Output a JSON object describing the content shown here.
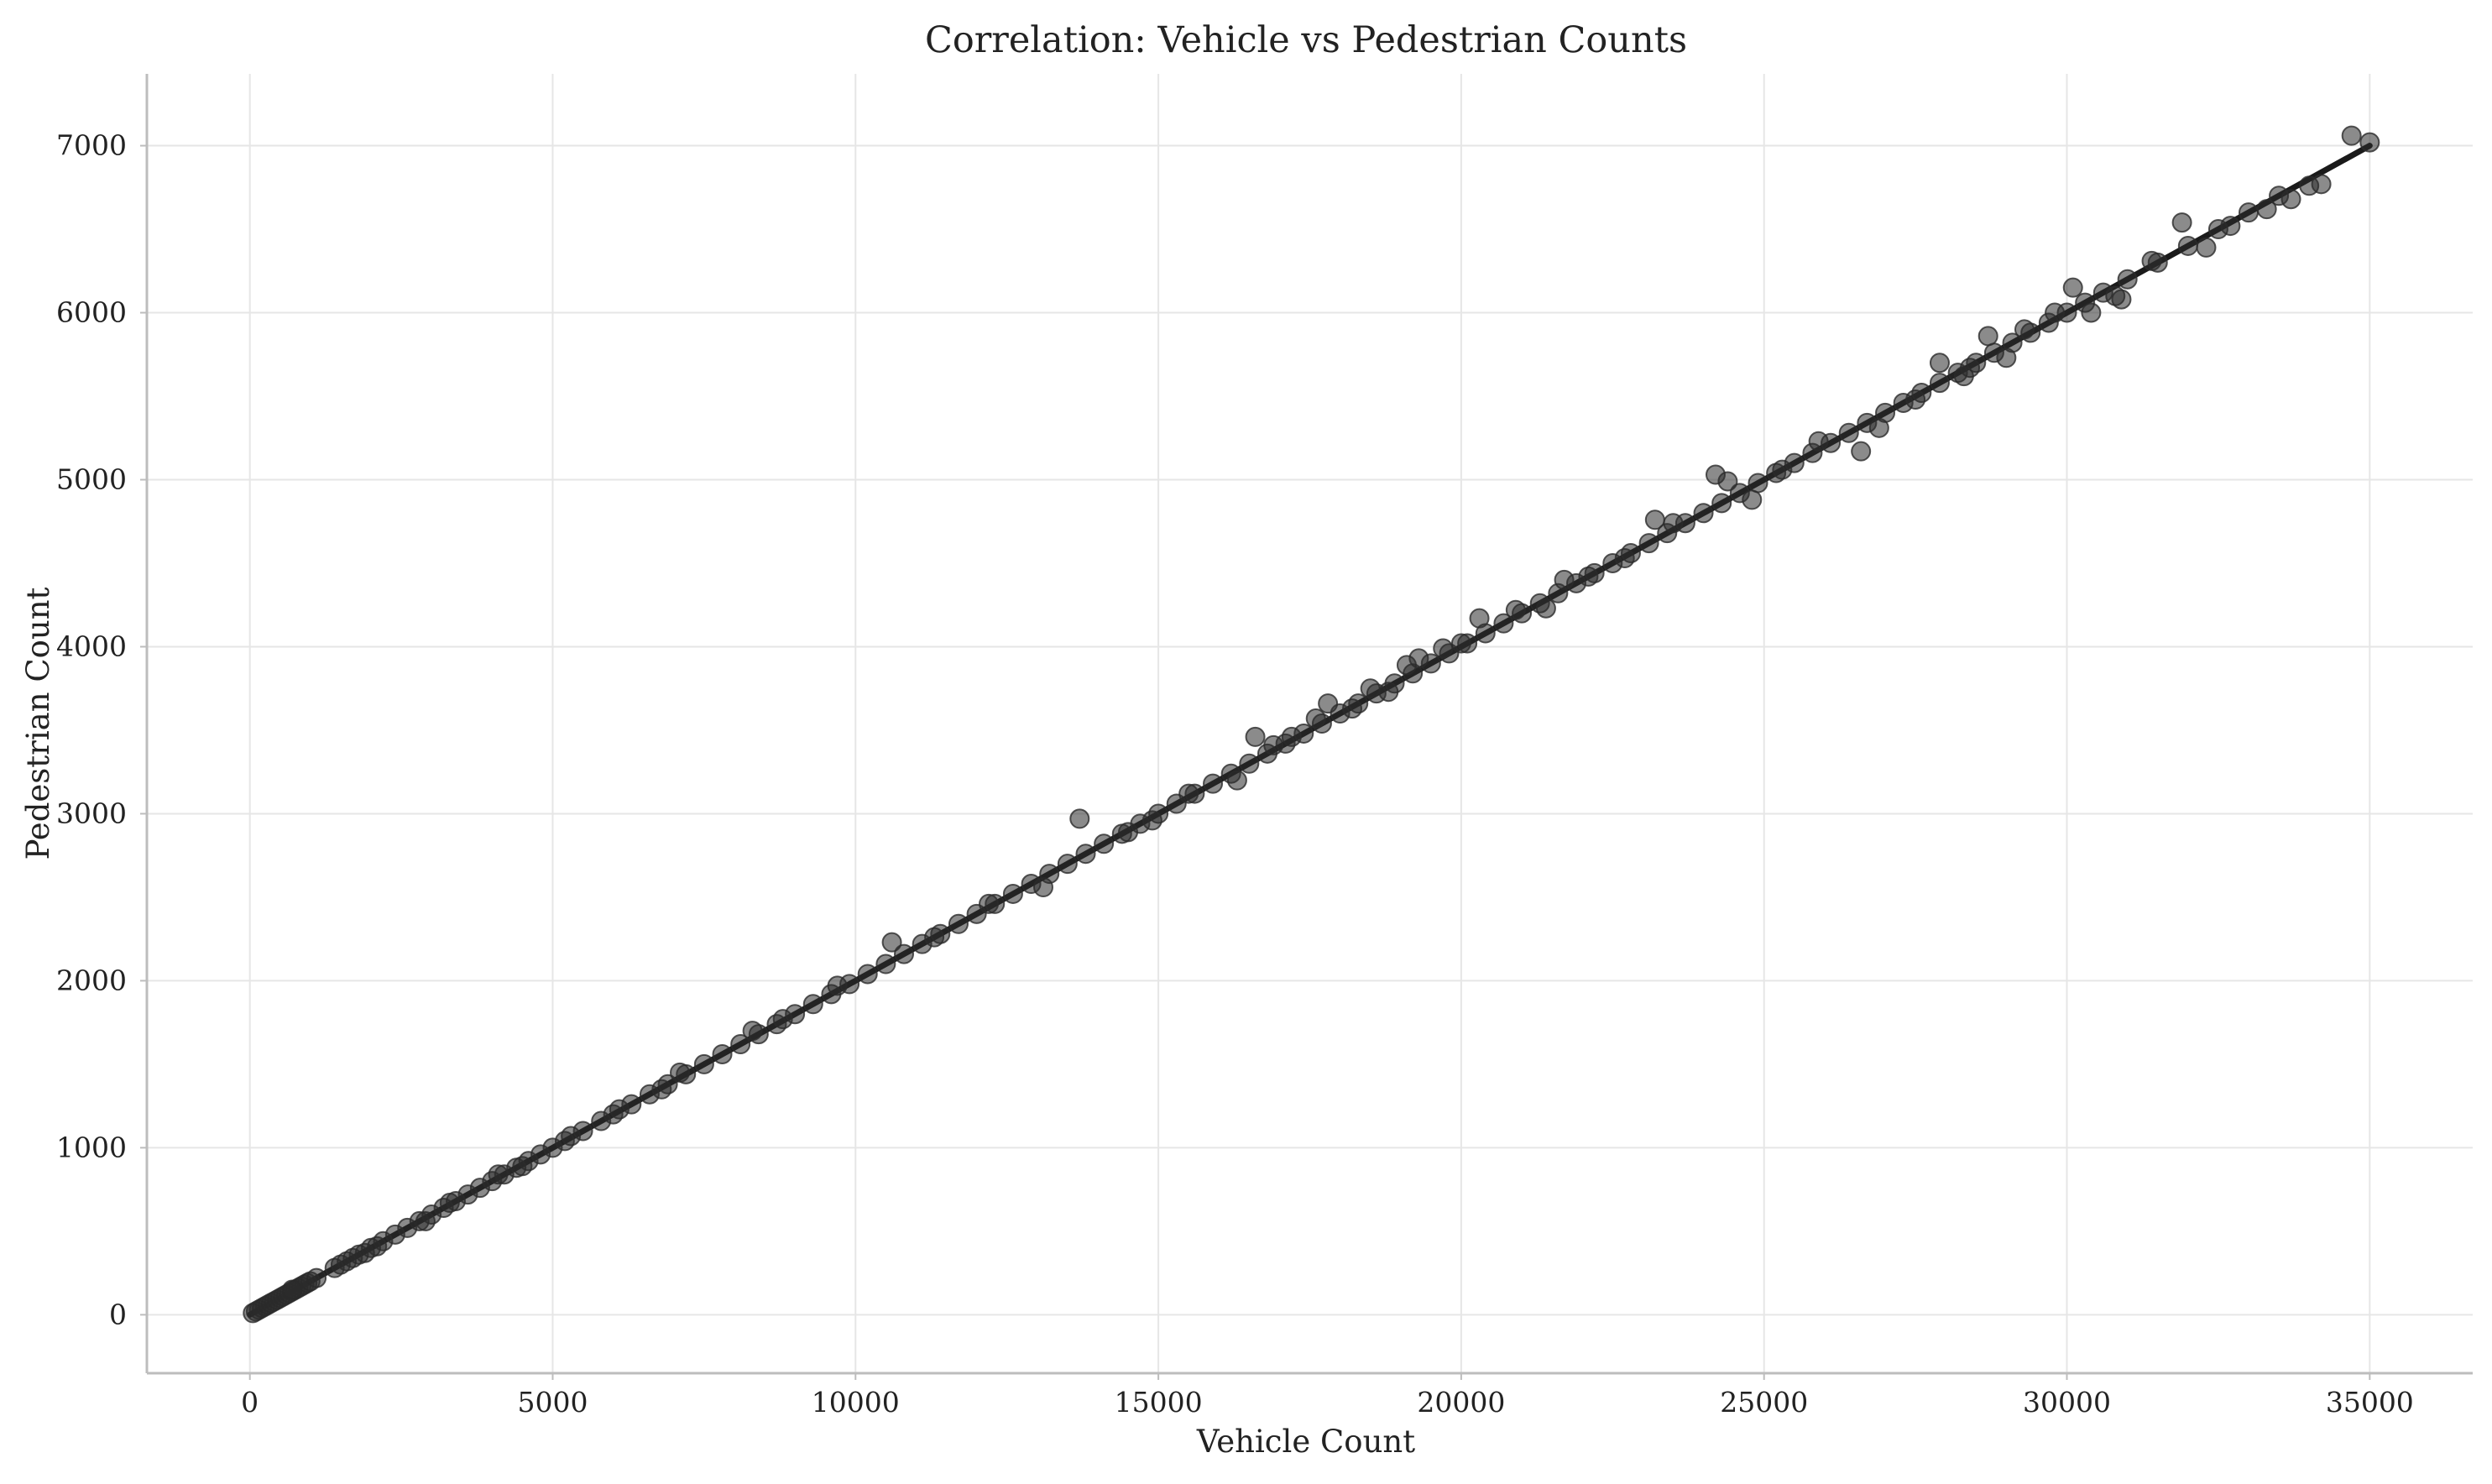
{
  "chart_data": {
    "type": "scatter",
    "title": "Correlation: Vehicle vs Pedestrian Counts",
    "xlabel": "Vehicle Count",
    "ylabel": "Pedestrian Count",
    "xlim": [
      -1700,
      36700
    ],
    "ylim": [
      -350,
      7430
    ],
    "x_ticks": [
      0,
      5000,
      10000,
      15000,
      20000,
      25000,
      30000,
      35000
    ],
    "y_ticks": [
      0,
      1000,
      2000,
      3000,
      4000,
      5000,
      6000,
      7000
    ],
    "grid": true,
    "legend": "none",
    "point_color": "#2b2b2b",
    "line_color": "#1a1a1a",
    "trend_line": {
      "x": [
        0,
        35000
      ],
      "y": [
        0,
        7000
      ]
    },
    "points": [
      [
        50,
        10
      ],
      [
        100,
        20
      ],
      [
        150,
        30
      ],
      [
        200,
        40
      ],
      [
        250,
        50
      ],
      [
        300,
        60
      ],
      [
        350,
        70
      ],
      [
        400,
        80
      ],
      [
        450,
        90
      ],
      [
        500,
        100
      ],
      [
        550,
        110
      ],
      [
        600,
        120
      ],
      [
        650,
        130
      ],
      [
        700,
        140
      ],
      [
        750,
        150
      ],
      [
        800,
        160
      ],
      [
        850,
        170
      ],
      [
        900,
        180
      ],
      [
        950,
        190
      ],
      [
        1000,
        200
      ],
      [
        1400,
        280
      ],
      [
        1500,
        300
      ],
      [
        1600,
        320
      ],
      [
        1700,
        340
      ],
      [
        1800,
        360
      ],
      [
        2000,
        400
      ],
      [
        2200,
        440
      ],
      [
        2400,
        480
      ],
      [
        2600,
        520
      ],
      [
        2800,
        560
      ],
      [
        3000,
        600
      ],
      [
        3200,
        640
      ],
      [
        3400,
        680
      ],
      [
        3600,
        720
      ],
      [
        3800,
        760
      ],
      [
        4000,
        800
      ],
      [
        4200,
        840
      ],
      [
        4400,
        880
      ],
      [
        4600,
        920
      ],
      [
        4800,
        960
      ],
      [
        5000,
        1000
      ],
      [
        5200,
        1040
      ],
      [
        5500,
        1100
      ],
      [
        5800,
        1160
      ],
      [
        6000,
        1200
      ],
      [
        6300,
        1260
      ],
      [
        6600,
        1320
      ],
      [
        6900,
        1380
      ],
      [
        7200,
        1440
      ],
      [
        7500,
        1500
      ],
      [
        7800,
        1560
      ],
      [
        8100,
        1620
      ],
      [
        8400,
        1680
      ],
      [
        8700,
        1740
      ],
      [
        9000,
        1800
      ],
      [
        9300,
        1860
      ],
      [
        9600,
        1920
      ],
      [
        9900,
        1980
      ],
      [
        10200,
        2040
      ],
      [
        10500,
        2100
      ],
      [
        10800,
        2160
      ],
      [
        11100,
        2220
      ],
      [
        11400,
        2280
      ],
      [
        11700,
        2340
      ],
      [
        12000,
        2400
      ],
      [
        12300,
        2460
      ],
      [
        12600,
        2520
      ],
      [
        12900,
        2580
      ],
      [
        13200,
        2640
      ],
      [
        13500,
        2700
      ],
      [
        13800,
        2760
      ],
      [
        14100,
        2820
      ],
      [
        14400,
        2880
      ],
      [
        14700,
        2940
      ],
      [
        15000,
        3000
      ],
      [
        15300,
        3060
      ],
      [
        15600,
        3120
      ],
      [
        15900,
        3180
      ],
      [
        16200,
        3240
      ],
      [
        16500,
        3300
      ],
      [
        16800,
        3360
      ],
      [
        17100,
        3420
      ],
      [
        17400,
        3480
      ],
      [
        17700,
        3540
      ],
      [
        18000,
        3600
      ],
      [
        18300,
        3660
      ],
      [
        18600,
        3720
      ],
      [
        18900,
        3780
      ],
      [
        19200,
        3840
      ],
      [
        19500,
        3900
      ],
      [
        19800,
        3960
      ],
      [
        20100,
        4020
      ],
      [
        20400,
        4080
      ],
      [
        20700,
        4140
      ],
      [
        21000,
        4200
      ],
      [
        21300,
        4260
      ],
      [
        21600,
        4320
      ],
      [
        21900,
        4380
      ],
      [
        22200,
        4440
      ],
      [
        22500,
        4500
      ],
      [
        22800,
        4560
      ],
      [
        23100,
        4620
      ],
      [
        23400,
        4680
      ],
      [
        23700,
        4740
      ],
      [
        24000,
        4800
      ],
      [
        24300,
        4860
      ],
      [
        24600,
        4920
      ],
      [
        24900,
        4980
      ],
      [
        25200,
        5040
      ],
      [
        25500,
        5100
      ],
      [
        25800,
        5160
      ],
      [
        26100,
        5220
      ],
      [
        26400,
        5280
      ],
      [
        26700,
        5340
      ],
      [
        27000,
        5400
      ],
      [
        27300,
        5460
      ],
      [
        27600,
        5520
      ],
      [
        27900,
        5580
      ],
      [
        28200,
        5640
      ],
      [
        28500,
        5700
      ],
      [
        28800,
        5760
      ],
      [
        29100,
        5820
      ],
      [
        29400,
        5880
      ],
      [
        29700,
        5940
      ],
      [
        30000,
        6000
      ],
      [
        30300,
        6060
      ],
      [
        30600,
        6120
      ],
      [
        31000,
        6200
      ],
      [
        31500,
        6300
      ],
      [
        32000,
        6400
      ],
      [
        32500,
        6500
      ],
      [
        33000,
        6600
      ],
      [
        33500,
        6700
      ],
      [
        34000,
        6760
      ],
      [
        34700,
        7060
      ],
      [
        35000,
        7020
      ],
      [
        1100,
        220
      ],
      [
        2100,
        410
      ],
      [
        3300,
        670
      ],
      [
        4500,
        890
      ],
      [
        6800,
        1350
      ],
      [
        8800,
        1770
      ],
      [
        11300,
        2260
      ],
      [
        13700,
        2970
      ],
      [
        14900,
        2960
      ],
      [
        16600,
        3460
      ],
      [
        17200,
        3460
      ],
      [
        17800,
        3660
      ],
      [
        18500,
        3750
      ],
      [
        19300,
        3930
      ],
      [
        20300,
        4170
      ],
      [
        21400,
        4230
      ],
      [
        22100,
        4420
      ],
      [
        23200,
        4760
      ],
      [
        24200,
        5030
      ],
      [
        24800,
        4880
      ],
      [
        25300,
        5060
      ],
      [
        25900,
        5230
      ],
      [
        26600,
        5170
      ],
      [
        26900,
        5310
      ],
      [
        27500,
        5480
      ],
      [
        27900,
        5700
      ],
      [
        28300,
        5620
      ],
      [
        28700,
        5860
      ],
      [
        29000,
        5730
      ],
      [
        29300,
        5900
      ],
      [
        29800,
        6000
      ],
      [
        30100,
        6150
      ],
      [
        30400,
        6000
      ],
      [
        30800,
        6100
      ],
      [
        31400,
        6310
      ],
      [
        31900,
        6540
      ],
      [
        32300,
        6390
      ],
      [
        32700,
        6520
      ],
      [
        33300,
        6620
      ],
      [
        33700,
        6680
      ],
      [
        34200,
        6770
      ],
      [
        24400,
        4990
      ],
      [
        23500,
        4740
      ],
      [
        22700,
        4530
      ],
      [
        21700,
        4400
      ],
      [
        20900,
        4220
      ],
      [
        20000,
        4020
      ],
      [
        19700,
        3990
      ],
      [
        19100,
        3890
      ],
      [
        18800,
        3730
      ],
      [
        18200,
        3630
      ],
      [
        17600,
        3570
      ],
      [
        16900,
        3410
      ],
      [
        16300,
        3200
      ],
      [
        15500,
        3120
      ],
      [
        14500,
        2890
      ],
      [
        13100,
        2560
      ],
      [
        12200,
        2460
      ],
      [
        10600,
        2230
      ],
      [
        9700,
        1970
      ],
      [
        8300,
        1700
      ],
      [
        7100,
        1450
      ],
      [
        6100,
        1230
      ],
      [
        5300,
        1070
      ],
      [
        4100,
        840
      ],
      [
        2900,
        560
      ],
      [
        1900,
        370
      ],
      [
        700,
        150
      ],
      [
        28400,
        5670
      ],
      [
        30900,
        6080
      ]
    ]
  }
}
